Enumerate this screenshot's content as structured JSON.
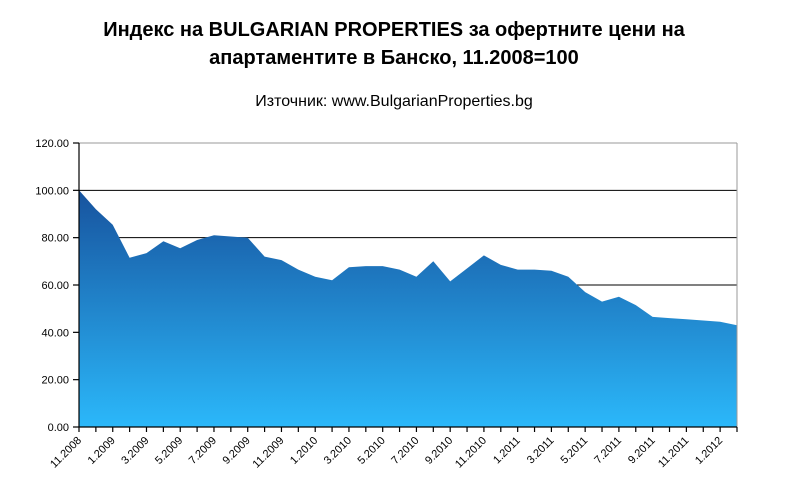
{
  "chart_data": {
    "type": "area",
    "title": "Индекс на BULGARIAN PROPERTIES за офертните цени на апартаментите в Банско, 11.2008=100",
    "title_lines": [
      "Индекс на BULGARIAN PROPERTIES за офертните цени на",
      "апартаментите в Банско, 11.2008=100"
    ],
    "subtitle": "Източник: www.BulgarianProperties.bg",
    "categories": [
      "11.2008",
      "12.2008",
      "1.2009",
      "2.2009",
      "3.2009",
      "4.2009",
      "5.2009",
      "6.2009",
      "7.2009",
      "8.2009",
      "9.2009",
      "10.2009",
      "11.2009",
      "12.2009",
      "1.2010",
      "2.2010",
      "3.2010",
      "4.2010",
      "5.2010",
      "6.2010",
      "7.2010",
      "8.2010",
      "9.2010",
      "10.2010",
      "11.2010",
      "12.2010",
      "1.2011",
      "2.2011",
      "3.2011",
      "4.2011",
      "5.2011",
      "6.2011",
      "7.2011",
      "8.2011",
      "9.2011",
      "10.2011",
      "11.2011",
      "12.2011",
      "1.2012",
      "2.2012"
    ],
    "values": [
      100,
      92,
      85.5,
      71.5,
      73.5,
      78.5,
      75.5,
      79,
      81,
      80.5,
      80,
      72,
      70.5,
      66.5,
      63.5,
      62,
      67.5,
      68,
      68,
      66.5,
      63.5,
      70,
      61.5,
      67,
      72.5,
      68.5,
      66.5,
      66.5,
      66,
      63.5,
      57,
      53,
      55,
      51.5,
      46.5,
      46,
      45.5,
      45,
      44.5,
      43
    ],
    "x_tick_labels": [
      "11.2008",
      "1.2009",
      "3.2009",
      "5.2009",
      "7.2009",
      "9.2009",
      "11.2009",
      "1.2010",
      "3.2010",
      "5.2010",
      "7.2010",
      "9.2010",
      "11.2010",
      "1.2011",
      "3.2011",
      "5.2011",
      "7.2011",
      "9.2011",
      "11.2011",
      "1.2012"
    ],
    "label_every": 2,
    "ylim": [
      0,
      120
    ],
    "ytick_interval": 20,
    "y_tick_labels": [
      "0.00",
      "20.00",
      "40.00",
      "60.00",
      "80.00",
      "100.00",
      "120.00"
    ],
    "grid": true,
    "legend": "none",
    "colors": {
      "area_top": "#17539E",
      "area_bottom": "#2BB8FA",
      "gridline": "#000000",
      "axis": "#000000",
      "plot_border": "#9a9a9a",
      "text": "#000000",
      "background": "#ffffff"
    }
  }
}
